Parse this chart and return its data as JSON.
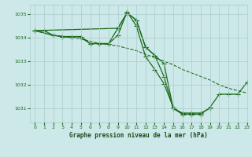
{
  "title": "Graphe pression niveau de la mer (hPa)",
  "background_color": "#cce8e8",
  "grid_color": "#aacccc",
  "line_color": "#1a6b1a",
  "xlim": [
    -0.5,
    23
  ],
  "ylim": [
    1030.4,
    1035.4
  ],
  "yticks": [
    1031,
    1032,
    1033,
    1034,
    1035
  ],
  "xticks": [
    0,
    1,
    2,
    3,
    4,
    5,
    6,
    7,
    8,
    9,
    10,
    11,
    12,
    13,
    14,
    15,
    16,
    17,
    18,
    19,
    20,
    21,
    22,
    23
  ],
  "lines": [
    {
      "x": [
        0,
        2,
        3,
        4,
        5,
        6,
        7,
        8,
        9,
        10,
        11,
        12,
        13,
        14,
        15,
        16,
        17,
        18,
        19,
        20,
        21,
        22,
        23
      ],
      "y": [
        1034.3,
        1034.1,
        1034.05,
        1034.0,
        1033.95,
        1033.85,
        1033.75,
        1033.7,
        1033.65,
        1033.55,
        1033.45,
        1033.3,
        1033.15,
        1033.0,
        1032.85,
        1032.65,
        1032.5,
        1032.35,
        1032.2,
        1032.0,
        1031.85,
        1031.75,
        1031.65
      ],
      "has_markers": false
    },
    {
      "x": [
        0,
        1,
        2,
        3,
        4,
        5,
        6,
        7,
        8,
        9,
        10,
        11,
        12,
        13,
        14,
        15,
        16,
        17,
        18,
        19
      ],
      "y": [
        1034.3,
        1034.3,
        1034.1,
        1034.05,
        1034.05,
        1034.05,
        1033.75,
        1033.75,
        1033.75,
        1034.4,
        1035.05,
        1034.75,
        1033.6,
        1033.25,
        1032.9,
        1031.0,
        1030.8,
        1030.8,
        1030.8,
        1031.0
      ],
      "has_markers": true
    },
    {
      "x": [
        0,
        2,
        3,
        4,
        5,
        6,
        7,
        8,
        9,
        10,
        11,
        12,
        13,
        14,
        15,
        16,
        17,
        18
      ],
      "y": [
        1034.3,
        1034.1,
        1034.05,
        1034.0,
        1034.0,
        1033.75,
        1033.75,
        1033.75,
        1034.1,
        1035.1,
        1034.5,
        1033.2,
        1032.65,
        1032.05,
        1031.05,
        1030.75,
        1030.75,
        1030.75
      ],
      "has_markers": true
    },
    {
      "x": [
        0,
        9,
        10,
        11,
        12,
        13,
        14,
        15,
        16,
        17,
        18,
        19,
        20,
        21,
        22,
        23
      ],
      "y": [
        1034.3,
        1034.4,
        1035.05,
        1034.75,
        1033.6,
        1033.25,
        1032.35,
        1031.0,
        1030.75,
        1030.75,
        1030.75,
        1031.05,
        1031.6,
        1031.6,
        1031.6,
        1032.1
      ],
      "has_markers": true
    }
  ]
}
